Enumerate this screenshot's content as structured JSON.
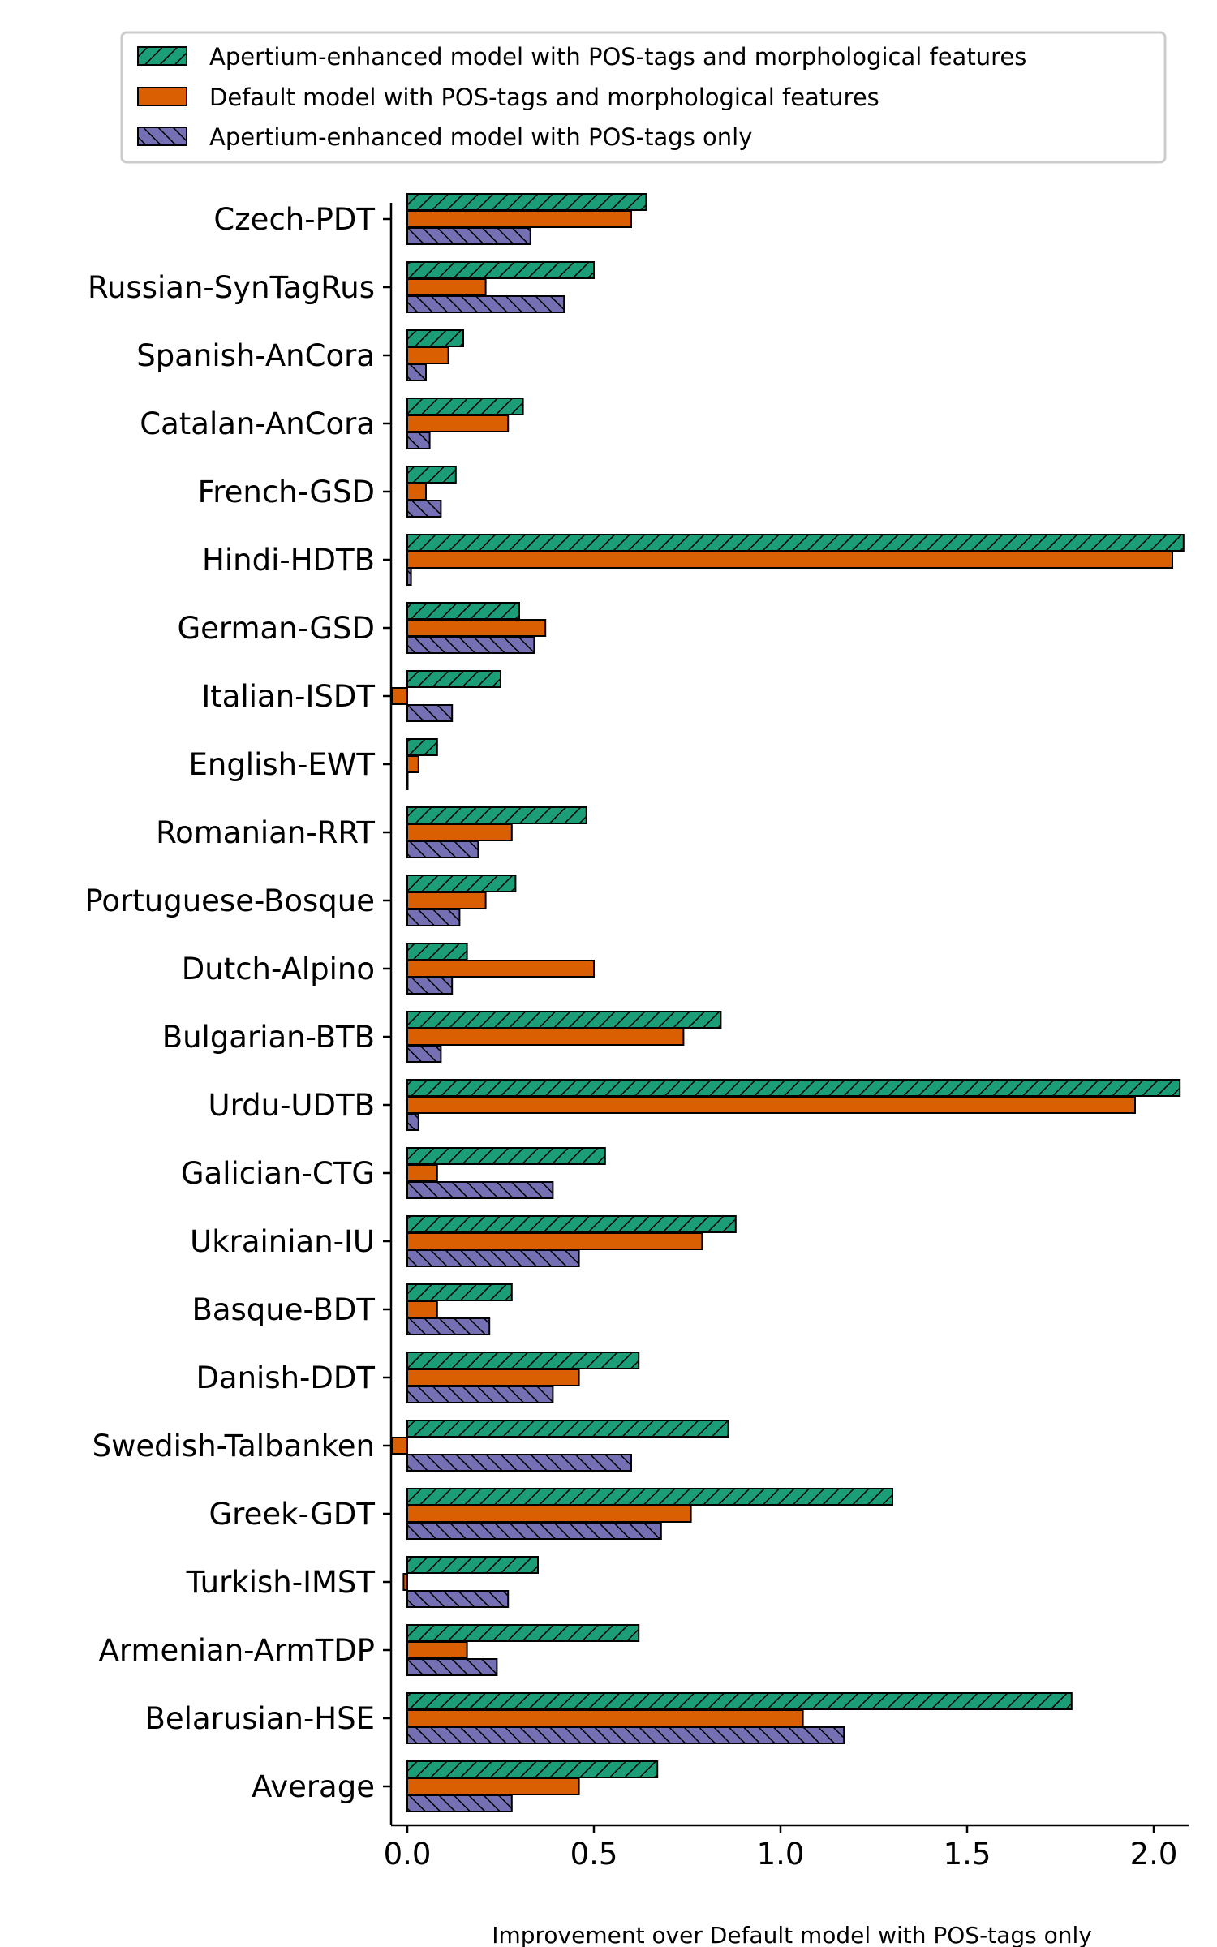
{
  "chart_data": {
    "type": "bar",
    "orientation": "horizontal",
    "title": "",
    "xlabel": "Improvement over Default model with POS-tags only",
    "ylabel": "",
    "xlim": [
      -0.05,
      2.1
    ],
    "xticks": [
      "0.0",
      "0.5",
      "1.0",
      "1.5",
      "2.0"
    ],
    "grid": false,
    "legend_position": "top",
    "categories": [
      "Czech-PDT",
      "Russian-SynTagRus",
      "Spanish-AnCora",
      "Catalan-AnCora",
      "French-GSD",
      "Hindi-HDTB",
      "German-GSD",
      "Italian-ISDT",
      "English-EWT",
      "Romanian-RRT",
      "Portuguese-Bosque",
      "Dutch-Alpino",
      "Bulgarian-BTB",
      "Urdu-UDTB",
      "Galician-CTG",
      "Ukrainian-IU",
      "Basque-BDT",
      "Danish-DDT",
      "Swedish-Talbanken",
      "Greek-GDT",
      "Turkish-IMST",
      "Armenian-ArmTDP",
      "Belarusian-HSE",
      "Average"
    ],
    "series": [
      {
        "name": "Apertium-enhanced model with POS-tags and morphological features",
        "color": "#1b9e77",
        "hatch": "diagonal",
        "values": [
          0.64,
          0.5,
          0.15,
          0.31,
          0.13,
          2.08,
          0.3,
          0.25,
          0.08,
          0.48,
          0.29,
          0.16,
          0.84,
          2.07,
          0.53,
          0.88,
          0.28,
          0.62,
          0.86,
          1.3,
          0.35,
          0.62,
          1.78,
          0.67
        ]
      },
      {
        "name": "Default model with POS-tags and morphological features",
        "color": "#d95f02",
        "hatch": "none",
        "values": [
          0.6,
          0.21,
          0.11,
          0.27,
          0.05,
          2.05,
          0.37,
          -0.04,
          0.03,
          0.28,
          0.21,
          0.5,
          0.74,
          1.95,
          0.08,
          0.79,
          0.08,
          0.46,
          -0.04,
          0.76,
          -0.01,
          0.16,
          1.06,
          0.46
        ]
      },
      {
        "name": "Apertium-enhanced model with POS-tags only",
        "color": "#7570b3",
        "hatch": "backslash",
        "values": [
          0.33,
          0.42,
          0.05,
          0.06,
          0.09,
          0.01,
          0.34,
          0.12,
          0.0,
          0.19,
          0.14,
          0.12,
          0.09,
          0.03,
          0.39,
          0.46,
          0.22,
          0.39,
          0.6,
          0.68,
          0.27,
          0.24,
          1.17,
          0.28
        ]
      }
    ]
  }
}
